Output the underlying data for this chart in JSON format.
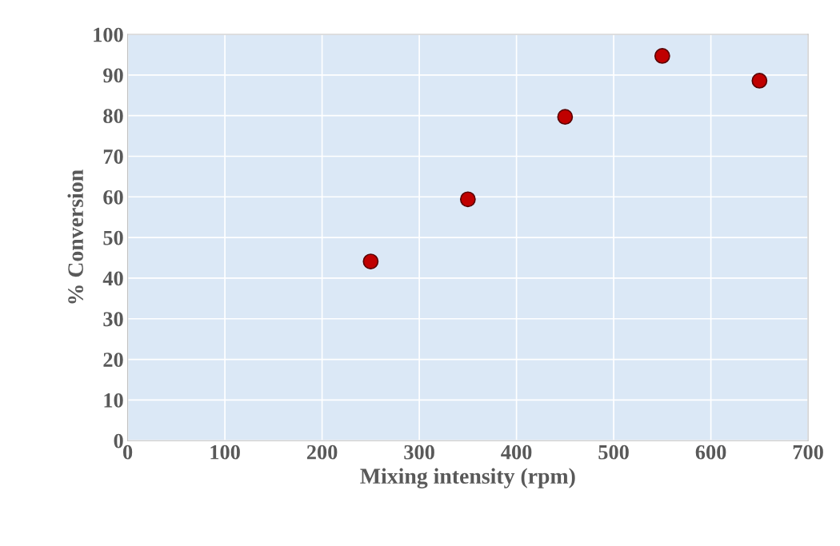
{
  "chart_data": {
    "type": "scatter",
    "xlabel": "Mixing intensity (rpm)",
    "ylabel": "% Conversion",
    "x": [
      250,
      350,
      450,
      550,
      650
    ],
    "series": [
      {
        "color": "#c00000",
        "values": [
          44.1,
          59.4,
          79.7,
          94.7,
          88.6
        ]
      }
    ],
    "xlim": [
      0,
      700
    ],
    "xticks": [
      0,
      100,
      200,
      300,
      400,
      500,
      600,
      700
    ],
    "ylim": [
      0,
      100
    ],
    "yticks": [
      0,
      10,
      20,
      30,
      40,
      50,
      60,
      70,
      80,
      90,
      100
    ],
    "grid": true,
    "marker": "circle"
  }
}
